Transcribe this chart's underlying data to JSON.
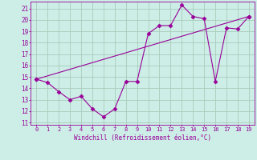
{
  "xlabel": "Windchill (Refroidissement éolien,°C)",
  "bg_color": "#cceee6",
  "line_color": "#990099",
  "grid_color": "#aaccbb",
  "xlim": [
    -0.5,
    19.5
  ],
  "ylim": [
    10.8,
    21.6
  ],
  "yticks": [
    11,
    12,
    13,
    14,
    15,
    16,
    17,
    18,
    19,
    20,
    21
  ],
  "xticks": [
    0,
    1,
    2,
    3,
    4,
    5,
    6,
    7,
    8,
    9,
    10,
    11,
    12,
    13,
    14,
    15,
    16,
    17,
    18,
    19
  ],
  "line1_x": [
    0,
    1,
    2,
    3,
    4,
    5,
    6,
    7,
    8,
    9,
    10,
    11,
    12,
    13,
    14,
    15,
    16,
    17,
    18,
    19
  ],
  "line1_y": [
    14.8,
    14.5,
    13.7,
    13.0,
    13.3,
    12.2,
    11.5,
    12.2,
    14.6,
    14.6,
    18.8,
    19.5,
    19.5,
    21.3,
    20.3,
    20.1,
    14.6,
    19.3,
    19.2,
    20.3
  ],
  "line2_x": [
    0,
    19
  ],
  "line2_y": [
    14.8,
    20.3
  ],
  "marker": "D",
  "markersize": 2.5,
  "linewidth": 0.8
}
